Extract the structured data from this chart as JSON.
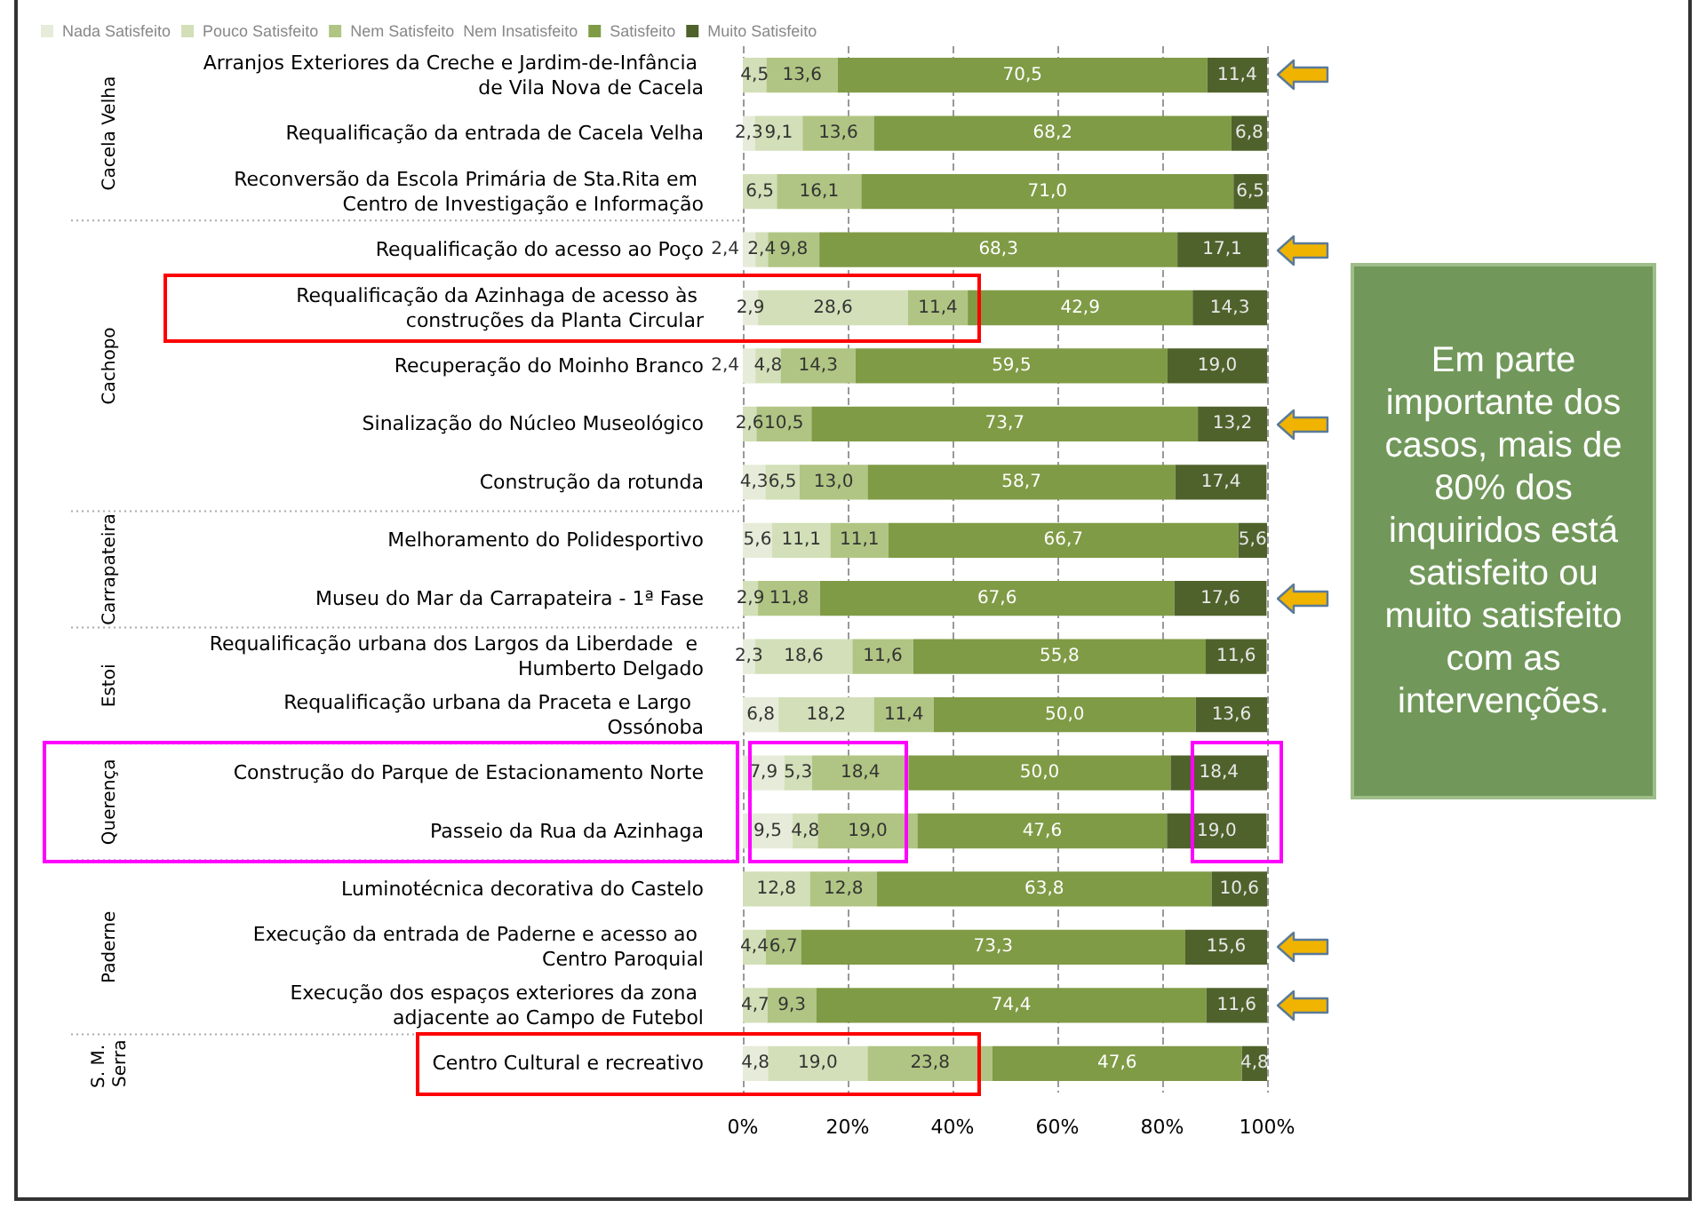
{
  "chart_data": {
    "type": "bar",
    "orientation": "horizontal",
    "stacked": true,
    "categories": [
      "Arranjos Exteriores da Creche e Jardim-de-Infância de Vila Nova de Cacela",
      "Requalificação da entrada de Cacela Velha",
      "Reconversão da Escola Primária de Sta.Rita em Centro de Investigação e Informação",
      "Requalificação do acesso ao Poço",
      "Requalificação da Azinhaga de acesso às construções da Planta Circular",
      "Recuperação do Moinho Branco",
      "Sinalização do Núcleo Museológico",
      "Construção da rotunda",
      "Melhoramento do Polidesportivo",
      "Museu do Mar da Carrapateira - 1ª Fase",
      "Requalificação urbana dos Largos da Liberdade  e Humberto Delgado",
      "Requalificação urbana da Praceta e Largo  Ossónoba",
      "Construção do Parque de Estacionamento Norte",
      "Passeio da Rua da Azinhaga",
      "Luminotécnica decorativa do Castelo",
      "Execução da entrada de Paderne e acesso ao Centro Paroquial",
      "Execução dos espaços exteriores da zona adjacente ao Campo de Futebol",
      "Centro Cultural e recreativo"
    ],
    "series": [
      {
        "name": "Nada Satisfeito",
        "color": "#e6ecd9",
        "values": [
          null,
          2.3,
          null,
          2.4,
          2.9,
          2.4,
          null,
          4.3,
          5.6,
          null,
          2.3,
          6.8,
          7.9,
          9.5,
          null,
          null,
          null,
          4.8
        ],
        "value_labels": [
          null,
          "2,3",
          null,
          "2,4",
          "2,9",
          "2,4",
          null,
          "4,3",
          "5,6",
          null,
          "2,3",
          "6,8",
          "7,9",
          "9,5",
          null,
          null,
          null,
          "4,8"
        ]
      },
      {
        "name": "Pouco Satisfeito",
        "color": "#d2dfb8",
        "values": [
          4.5,
          9.1,
          6.5,
          2.4,
          28.6,
          4.8,
          2.6,
          6.5,
          11.1,
          2.9,
          18.6,
          18.2,
          5.3,
          4.8,
          12.8,
          4.4,
          4.7,
          19.0
        ],
        "value_labels": [
          "4,5",
          "9,1",
          "6,5",
          "2,4",
          "28,6",
          "4,8",
          "2,6",
          "6,5",
          "11,1",
          "2,9",
          "18,6",
          "18,2",
          "5,3",
          "4,8",
          "12,8",
          "4,4",
          "4,7",
          "19,0"
        ]
      },
      {
        "name": "Nem Satisfeito  Nem Insatisfeito",
        "color": "#b0c583",
        "values": [
          13.6,
          13.6,
          16.1,
          9.8,
          11.4,
          14.3,
          10.5,
          13.0,
          11.1,
          11.8,
          11.6,
          11.4,
          18.4,
          19.0,
          12.8,
          6.7,
          9.3,
          23.8
        ],
        "value_labels": [
          "13,6",
          "13,6",
          "16,1",
          "9,8",
          "11,4",
          "14,3",
          "10,5",
          "13,0",
          "11,1",
          "11,8",
          "11,6",
          "11,4",
          "18,4",
          "19,0",
          "12,8",
          "6,7",
          "9,3",
          "23,8"
        ]
      },
      {
        "name": "Satisfeito",
        "color": "#7f9b45",
        "values": [
          70.5,
          68.2,
          71.0,
          68.3,
          42.9,
          59.5,
          73.7,
          58.7,
          66.7,
          67.6,
          55.8,
          50.0,
          50.0,
          47.6,
          63.8,
          73.3,
          74.4,
          47.6
        ],
        "value_labels": [
          "70,5",
          "68,2",
          "71,0",
          "68,3",
          "42,9",
          "59,5",
          "73,7",
          "58,7",
          "66,7",
          "67,6",
          "55,8",
          "50,0",
          "50,0",
          "47,6",
          "63,8",
          "73,3",
          "74,4",
          "47,6"
        ]
      },
      {
        "name": "Muito Satisfeito",
        "color": "#4f622b",
        "values": [
          11.4,
          6.8,
          6.5,
          17.1,
          14.3,
          19.0,
          13.2,
          17.4,
          5.6,
          17.6,
          11.6,
          13.6,
          18.4,
          19.0,
          10.6,
          15.6,
          11.6,
          4.8
        ],
        "value_labels": [
          "11,4",
          "6,8",
          "6,5",
          "17,1",
          "14,3",
          "19,0",
          "13,2",
          "17,4",
          "5,6",
          "17,6",
          "11,6",
          "13,6",
          "18,4",
          "19,0",
          "10,6",
          "15,6",
          "11,6",
          "4,8"
        ]
      }
    ],
    "xlim": [
      0,
      100
    ],
    "xticks": [
      {
        "value": 0,
        "label": "0%"
      },
      {
        "value": 20,
        "label": "20%"
      },
      {
        "value": 40,
        "label": "40%"
      },
      {
        "value": 60,
        "label": "60%"
      },
      {
        "value": 80,
        "label": "80%"
      },
      {
        "value": 100,
        "label": "100%"
      }
    ],
    "grid": "x",
    "legend": "top left",
    "annotations": [
      "Cacela Velha",
      "Cachopo",
      "Carrapateira",
      "Estoi",
      "Querença",
      "Paderne",
      "S. M. Serra",
      "Em parte importante dos casos, mais de 80% dos inquiridos está satisfeito ou muito satisfeito com as intervenções."
    ]
  }
}
